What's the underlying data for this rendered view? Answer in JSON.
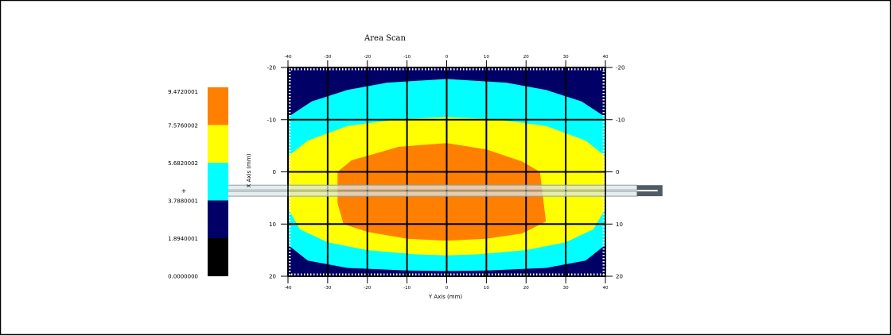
{
  "chart_data": {
    "type": "heatmap",
    "title": "Area Scan",
    "xlabel": "Y Axis (mm)",
    "ylabel": "X Axis (mm)",
    "x_ticks": [
      "-40",
      "-30",
      "-20",
      "-10",
      "0",
      "10",
      "20",
      "30",
      "40"
    ],
    "y_ticks": [
      "-20",
      "-10",
      "0",
      "10",
      "20"
    ],
    "xlim": [
      -40,
      40
    ],
    "ylim": [
      -20,
      20
    ],
    "grid": true,
    "legend": {
      "placement": "left",
      "levels": [
        "9.4720001",
        "7.5760002",
        "5.6820002",
        "3.7880001",
        "1.8940001",
        "0.0000000"
      ],
      "marker_symbol": "+",
      "colors": [
        "#ff8000",
        "#ffff00",
        "#00ffff",
        "#000066",
        "#000000"
      ]
    },
    "contours": [
      {
        "range": [
          "0.0000000",
          "1.8940001"
        ],
        "color": "#000066",
        "boundary": [
          [
            -40,
            -20
          ],
          [
            40,
            -20
          ],
          [
            40,
            20
          ],
          [
            -40,
            20
          ]
        ]
      },
      {
        "range": [
          "1.8940001",
          "3.7880001"
        ],
        "color": "#00ffff",
        "boundary": [
          [
            -40,
            -10.5
          ],
          [
            -34,
            -13.5
          ],
          [
            -25,
            -15.7
          ],
          [
            -15,
            -17.1
          ],
          [
            0,
            -17.8
          ],
          [
            15,
            -17.1
          ],
          [
            25,
            -15.7
          ],
          [
            34,
            -13.5
          ],
          [
            40,
            -10.5
          ],
          [
            40,
            14
          ],
          [
            35,
            17
          ],
          [
            25,
            18.4
          ],
          [
            10,
            18.9
          ],
          [
            0,
            19
          ],
          [
            -10,
            18.9
          ],
          [
            -25,
            18.4
          ],
          [
            -35,
            17
          ],
          [
            -40,
            14
          ]
        ]
      },
      {
        "range": [
          "3.7880001",
          "5.6820002"
        ],
        "color": "#ffff00",
        "boundary": [
          [
            -40,
            -3
          ],
          [
            -35,
            -6
          ],
          [
            -25,
            -8.8
          ],
          [
            -12,
            -10.1
          ],
          [
            0,
            -10.5
          ],
          [
            12,
            -10.1
          ],
          [
            25,
            -8.8
          ],
          [
            35,
            -6
          ],
          [
            40,
            -3
          ],
          [
            40,
            7
          ],
          [
            37,
            11
          ],
          [
            30,
            13.5
          ],
          [
            20,
            15
          ],
          [
            8,
            15.8
          ],
          [
            0,
            16
          ],
          [
            -8,
            15.8
          ],
          [
            -20,
            15
          ],
          [
            -30,
            13.5
          ],
          [
            -37,
            11
          ],
          [
            -40,
            7
          ]
        ]
      },
      {
        "range": [
          "5.6820002",
          "7.5760002"
        ],
        "color": "#ff8000",
        "boundary": [
          [
            -27.5,
            0
          ],
          [
            -24,
            -2.2
          ],
          [
            -12,
            -4.8
          ],
          [
            0,
            -5.5
          ],
          [
            10,
            -4.3
          ],
          [
            19,
            -2
          ],
          [
            23.5,
            0
          ],
          [
            25,
            9.5
          ],
          [
            19,
            11.8
          ],
          [
            10,
            12.8
          ],
          [
            0,
            13.2
          ],
          [
            -10,
            12.8
          ],
          [
            -20,
            11.5
          ],
          [
            -26,
            10
          ],
          [
            -27.5,
            6
          ]
        ]
      }
    ],
    "probe": {
      "x_range": [
        -40,
        60
      ],
      "y_range": [
        3,
        4.2
      ]
    }
  }
}
